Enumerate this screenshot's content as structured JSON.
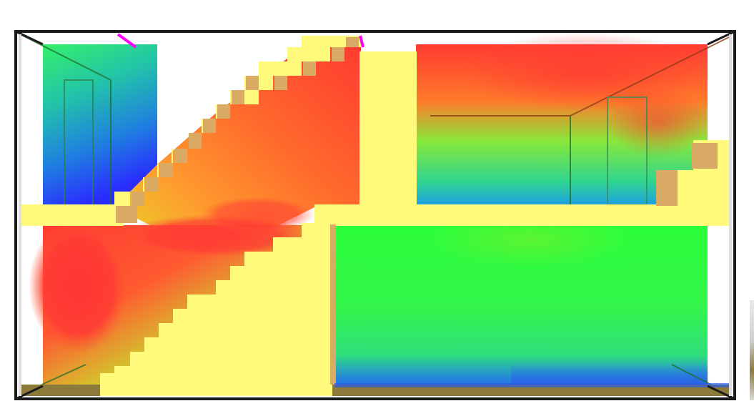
{
  "app": {
    "view_title": "",
    "mode": "temperature-heatmap-section-view"
  },
  "colors": {
    "frame": "#1b1b1b",
    "slab": "#fff97c",
    "stair_riser": "#d8aa64",
    "floor_strip": "#8b7a3a",
    "marker": "#ff00ff",
    "scale": [
      "#2a2cff",
      "#20a6e8",
      "#33f06a",
      "#2cff3a",
      "#d9e62a",
      "#ff7a2a",
      "#ff3a32"
    ]
  },
  "icons": {
    "markers": [
      "heat-source-marker-left",
      "heat-source-marker-center"
    ]
  }
}
